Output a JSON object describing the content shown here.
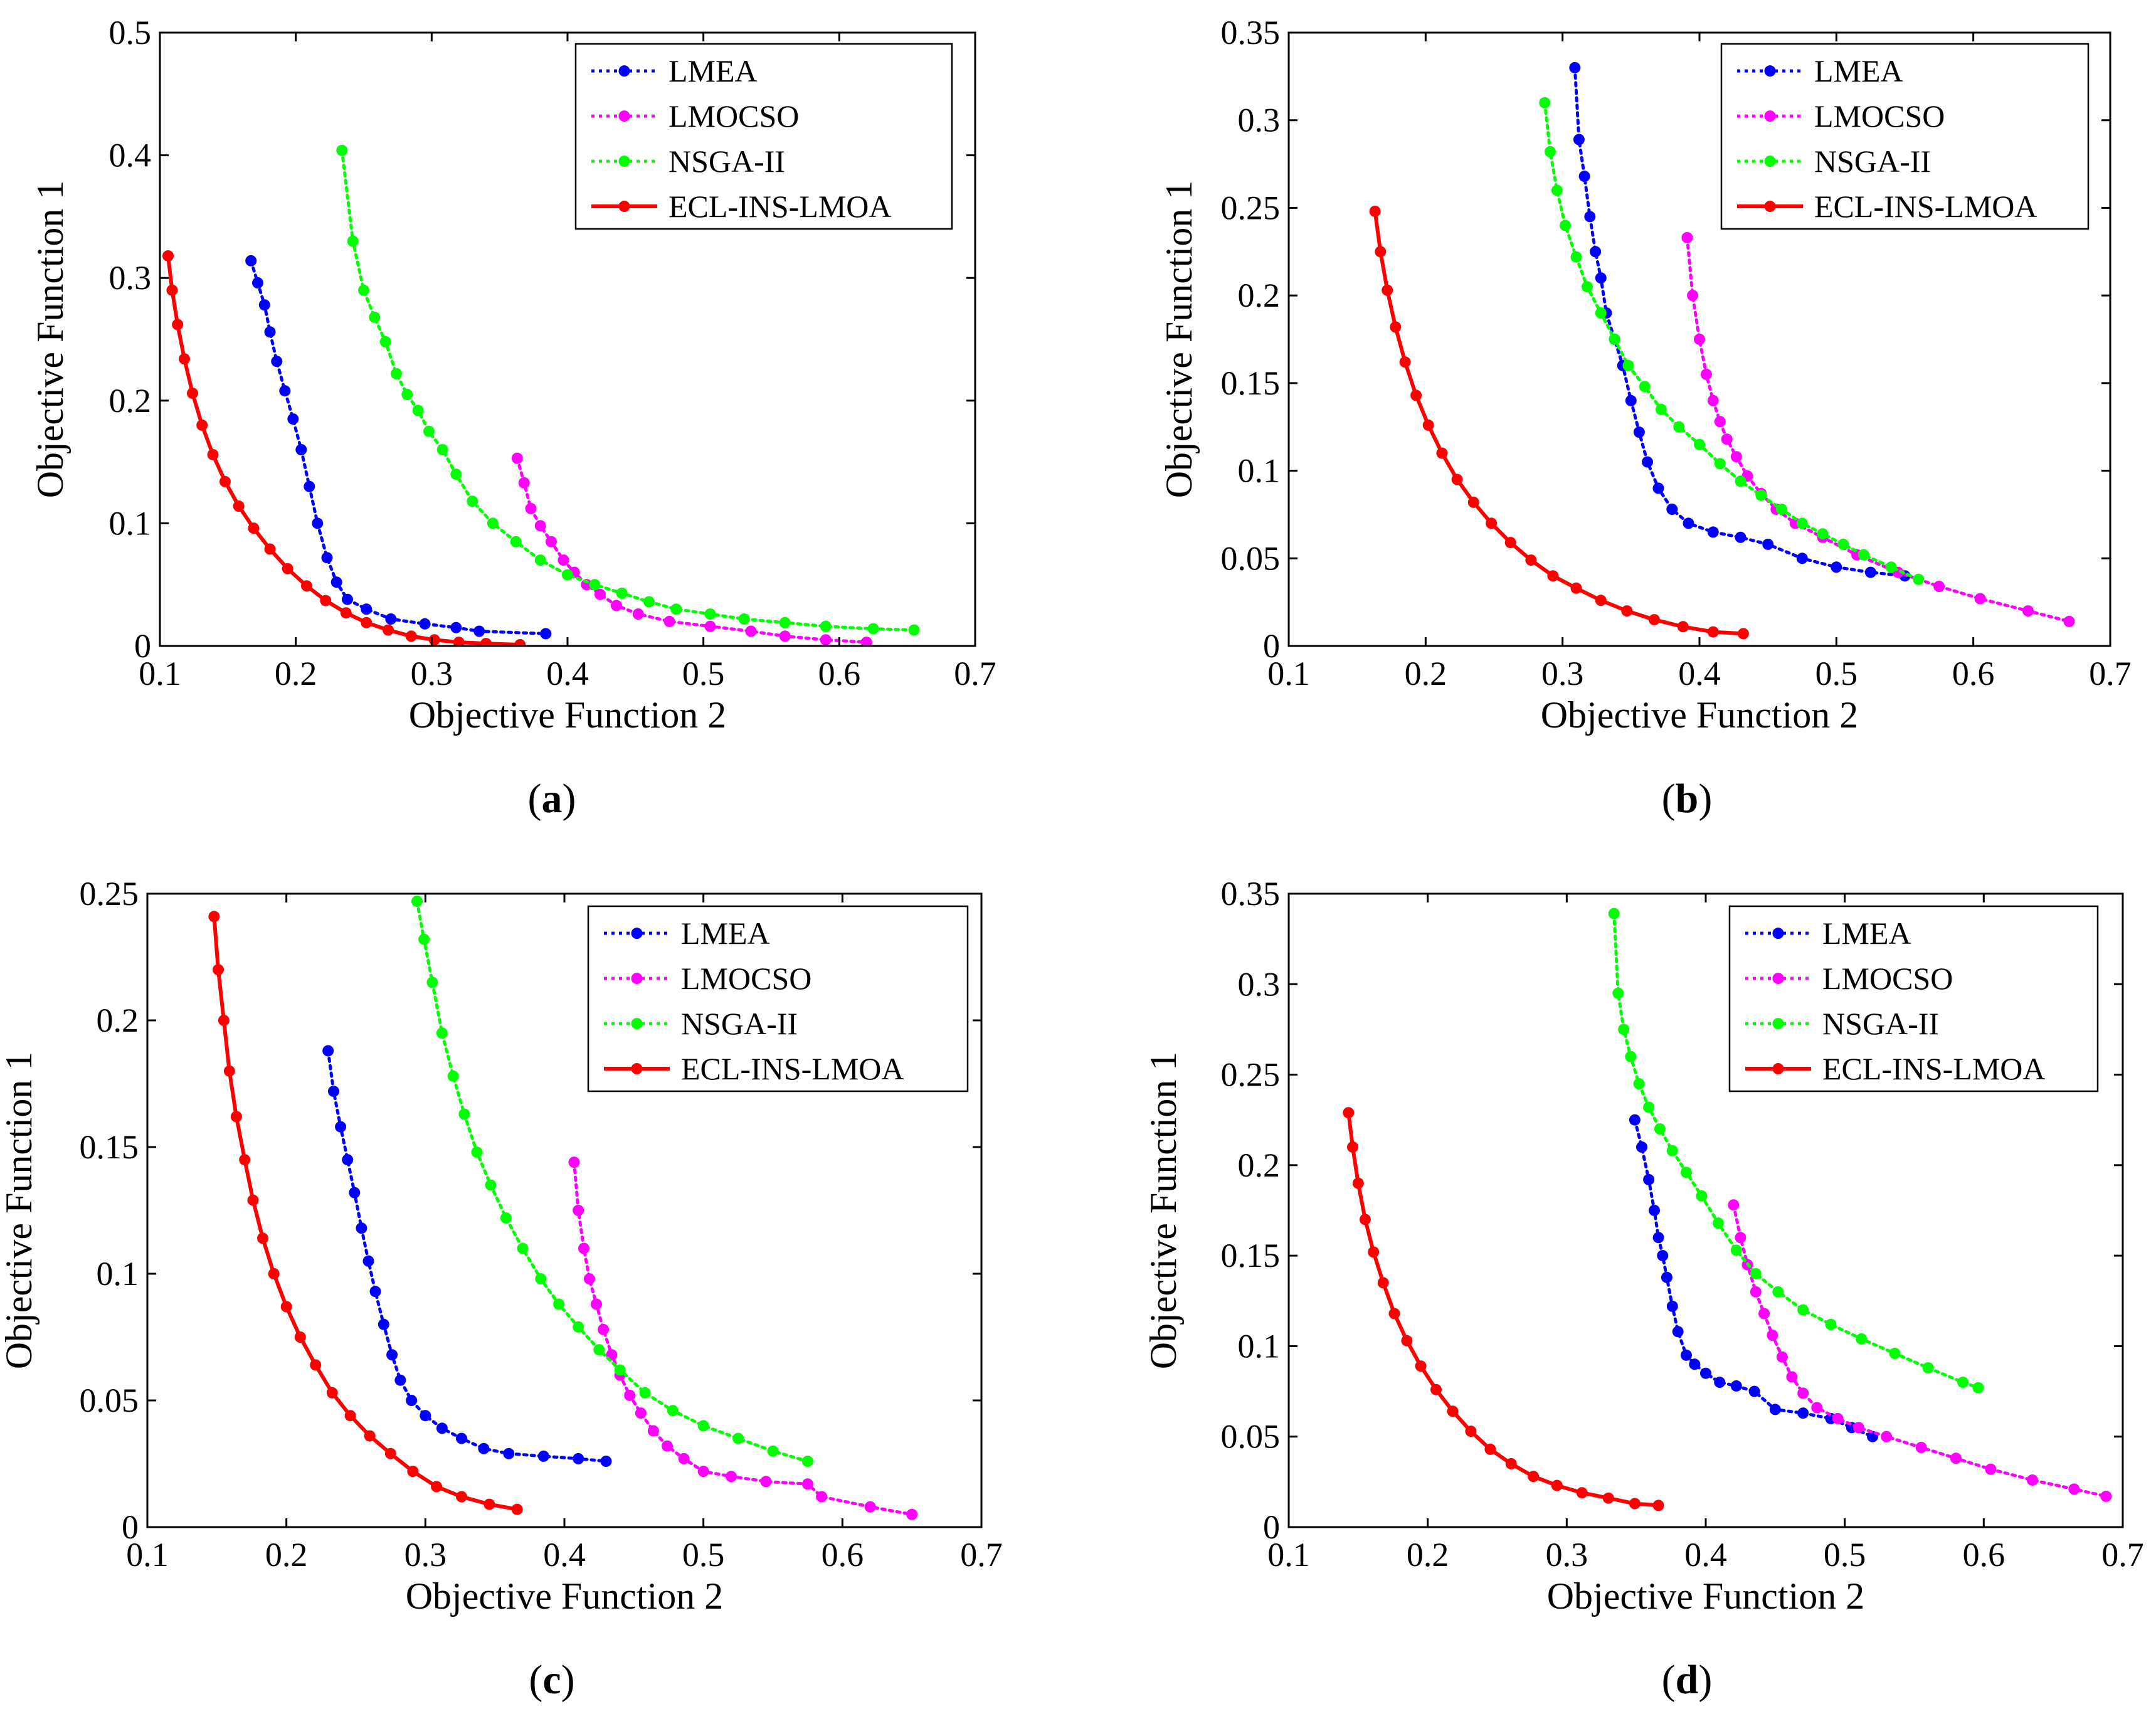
{
  "chart_data": [
    {
      "type": "line",
      "panel": "a",
      "caption": "(a)",
      "caption_parts": [
        "(",
        "a",
        ")"
      ],
      "xlabel": "Objective Function 2",
      "ylabel": "Objective Function 1",
      "xlim": [
        0.1,
        0.7
      ],
      "ylim": [
        0,
        0.5
      ],
      "xticks": [
        0.1,
        0.2,
        0.3,
        0.4,
        0.5,
        0.6,
        0.7
      ],
      "yticks": [
        0,
        0.1,
        0.2,
        0.3,
        0.4,
        0.5
      ],
      "xtick_labels": [
        "0.1",
        "0.2",
        "0.3",
        "0.4",
        "0.5",
        "0.6",
        "0.7"
      ],
      "ytick_labels": [
        "0",
        "0.1",
        "0.2",
        "0.3",
        "0.4",
        "0.5"
      ],
      "grid": false,
      "legend_position": "top-right",
      "series": [
        {
          "name": "LMEA",
          "color": "#0000ff",
          "line": "dotted",
          "x": [
            0.167,
            0.172,
            0.177,
            0.181,
            0.186,
            0.192,
            0.198,
            0.204,
            0.21,
            0.216,
            0.223,
            0.23,
            0.238,
            0.252,
            0.27,
            0.295,
            0.318,
            0.335,
            0.384
          ],
          "y": [
            0.314,
            0.296,
            0.278,
            0.256,
            0.232,
            0.208,
            0.185,
            0.16,
            0.13,
            0.1,
            0.072,
            0.052,
            0.038,
            0.03,
            0.022,
            0.018,
            0.015,
            0.012,
            0.01
          ]
        },
        {
          "name": "LMOCSO",
          "color": "#ff00ff",
          "line": "dotted",
          "x": [
            0.363,
            0.368,
            0.373,
            0.38,
            0.388,
            0.397,
            0.405,
            0.414,
            0.424,
            0.436,
            0.452,
            0.475,
            0.505,
            0.535,
            0.56,
            0.59,
            0.62
          ],
          "y": [
            0.153,
            0.133,
            0.112,
            0.098,
            0.085,
            0.07,
            0.06,
            0.05,
            0.042,
            0.033,
            0.026,
            0.02,
            0.016,
            0.012,
            0.008,
            0.005,
            0.003
          ]
        },
        {
          "name": "NSGA-II",
          "color": "#00ff00",
          "line": "dotted",
          "x": [
            0.234,
            0.242,
            0.25,
            0.258,
            0.266,
            0.274,
            0.282,
            0.29,
            0.298,
            0.308,
            0.318,
            0.33,
            0.345,
            0.362,
            0.38,
            0.4,
            0.42,
            0.44,
            0.46,
            0.48,
            0.505,
            0.53,
            0.56,
            0.59,
            0.625,
            0.655
          ],
          "y": [
            0.404,
            0.33,
            0.29,
            0.268,
            0.248,
            0.222,
            0.205,
            0.192,
            0.175,
            0.16,
            0.14,
            0.118,
            0.1,
            0.085,
            0.07,
            0.058,
            0.05,
            0.043,
            0.036,
            0.03,
            0.026,
            0.022,
            0.019,
            0.016,
            0.014,
            0.013
          ]
        },
        {
          "name": "ECL-INS-LMOA",
          "color": "#ff0000",
          "line": "solid",
          "x": [
            0.106,
            0.109,
            0.113,
            0.118,
            0.124,
            0.131,
            0.139,
            0.148,
            0.158,
            0.169,
            0.181,
            0.194,
            0.208,
            0.222,
            0.237,
            0.252,
            0.268,
            0.285,
            0.302,
            0.32,
            0.34,
            0.365
          ],
          "y": [
            0.318,
            0.29,
            0.262,
            0.234,
            0.206,
            0.18,
            0.156,
            0.134,
            0.114,
            0.096,
            0.079,
            0.063,
            0.049,
            0.037,
            0.027,
            0.019,
            0.013,
            0.008,
            0.005,
            0.003,
            0.002,
            0.001
          ]
        }
      ]
    },
    {
      "type": "line",
      "panel": "b",
      "caption": "(b)",
      "caption_parts": [
        "(",
        "b",
        ")"
      ],
      "xlabel": "Objective Function 2",
      "ylabel": "Objective Function 1",
      "xlim": [
        0.1,
        0.7
      ],
      "ylim": [
        0,
        0.35
      ],
      "xticks": [
        0.1,
        0.2,
        0.3,
        0.4,
        0.5,
        0.6,
        0.7
      ],
      "yticks": [
        0,
        0.05,
        0.1,
        0.15,
        0.2,
        0.25,
        0.3,
        0.35
      ],
      "xtick_labels": [
        "0.1",
        "0.2",
        "0.3",
        "0.4",
        "0.5",
        "0.6",
        "0.7"
      ],
      "ytick_labels": [
        "0",
        "0.05",
        "0.1",
        "0.15",
        "0.2",
        "0.25",
        "0.3",
        "0.35"
      ],
      "grid": false,
      "legend_position": "top-right",
      "series": [
        {
          "name": "LMEA",
          "color": "#0000ff",
          "line": "dotted",
          "x": [
            0.309,
            0.312,
            0.316,
            0.32,
            0.324,
            0.328,
            0.332,
            0.338,
            0.344,
            0.35,
            0.356,
            0.362,
            0.37,
            0.38,
            0.392,
            0.41,
            0.43,
            0.45,
            0.475,
            0.5,
            0.525,
            0.55
          ],
          "y": [
            0.33,
            0.289,
            0.268,
            0.245,
            0.225,
            0.21,
            0.19,
            0.175,
            0.16,
            0.14,
            0.122,
            0.105,
            0.09,
            0.078,
            0.07,
            0.065,
            0.062,
            0.058,
            0.05,
            0.045,
            0.042,
            0.04
          ]
        },
        {
          "name": "LMOCSO",
          "color": "#ff00ff",
          "line": "dotted",
          "x": [
            0.391,
            0.395,
            0.4,
            0.405,
            0.41,
            0.415,
            0.42,
            0.427,
            0.435,
            0.445,
            0.456,
            0.47,
            0.49,
            0.515,
            0.545,
            0.575,
            0.605,
            0.64,
            0.67
          ],
          "y": [
            0.233,
            0.2,
            0.175,
            0.155,
            0.14,
            0.128,
            0.118,
            0.108,
            0.097,
            0.087,
            0.078,
            0.07,
            0.062,
            0.052,
            0.042,
            0.034,
            0.027,
            0.02,
            0.014
          ]
        },
        {
          "name": "NSGA-II",
          "color": "#00ff00",
          "line": "dotted",
          "x": [
            0.287,
            0.291,
            0.296,
            0.302,
            0.31,
            0.318,
            0.328,
            0.338,
            0.348,
            0.36,
            0.372,
            0.385,
            0.4,
            0.415,
            0.43,
            0.445,
            0.46,
            0.475,
            0.49,
            0.505,
            0.52,
            0.54,
            0.56
          ],
          "y": [
            0.31,
            0.282,
            0.26,
            0.24,
            0.222,
            0.205,
            0.19,
            0.175,
            0.16,
            0.148,
            0.135,
            0.125,
            0.115,
            0.104,
            0.094,
            0.086,
            0.078,
            0.07,
            0.064,
            0.058,
            0.052,
            0.045,
            0.038
          ]
        },
        {
          "name": "ECL-INS-LMOA",
          "color": "#ff0000",
          "line": "solid",
          "x": [
            0.163,
            0.167,
            0.172,
            0.178,
            0.185,
            0.193,
            0.202,
            0.212,
            0.223,
            0.235,
            0.248,
            0.262,
            0.277,
            0.293,
            0.31,
            0.328,
            0.347,
            0.367,
            0.388,
            0.41,
            0.432
          ],
          "y": [
            0.248,
            0.225,
            0.203,
            0.182,
            0.162,
            0.143,
            0.126,
            0.11,
            0.095,
            0.082,
            0.07,
            0.059,
            0.049,
            0.04,
            0.033,
            0.026,
            0.02,
            0.015,
            0.011,
            0.008,
            0.007
          ]
        }
      ]
    },
    {
      "type": "line",
      "panel": "c",
      "caption": "(c)",
      "caption_parts": [
        "(",
        "c",
        ")"
      ],
      "xlabel": "Objective Function 2",
      "ylabel": "Objective Function 1",
      "xlim": [
        0.1,
        0.7
      ],
      "ylim": [
        0,
        0.25
      ],
      "xticks": [
        0.1,
        0.2,
        0.3,
        0.4,
        0.5,
        0.6,
        0.7
      ],
      "yticks": [
        0,
        0.05,
        0.1,
        0.15,
        0.2,
        0.25
      ],
      "xtick_labels": [
        "0.1",
        "0.2",
        "0.3",
        "0.4",
        "0.5",
        "0.6",
        "0.7"
      ],
      "ytick_labels": [
        "0",
        "0.05",
        "0.1",
        "0.15",
        "0.2",
        "0.25"
      ],
      "grid": false,
      "legend_position": "top-right",
      "series": [
        {
          "name": "LMEA",
          "color": "#0000ff",
          "line": "dotted",
          "x": [
            0.23,
            0.234,
            0.239,
            0.244,
            0.249,
            0.254,
            0.259,
            0.264,
            0.27,
            0.276,
            0.282,
            0.29,
            0.3,
            0.312,
            0.326,
            0.342,
            0.36,
            0.385,
            0.41,
            0.43
          ],
          "y": [
            0.188,
            0.172,
            0.158,
            0.145,
            0.132,
            0.118,
            0.105,
            0.093,
            0.08,
            0.068,
            0.058,
            0.05,
            0.044,
            0.039,
            0.035,
            0.031,
            0.029,
            0.028,
            0.027,
            0.026
          ]
        },
        {
          "name": "LMOCSO",
          "color": "#ff00ff",
          "line": "dotted",
          "x": [
            0.407,
            0.41,
            0.414,
            0.418,
            0.423,
            0.428,
            0.434,
            0.44,
            0.447,
            0.455,
            0.464,
            0.474,
            0.486,
            0.5,
            0.52,
            0.545,
            0.575,
            0.585,
            0.62,
            0.65
          ],
          "y": [
            0.144,
            0.125,
            0.11,
            0.098,
            0.088,
            0.078,
            0.068,
            0.06,
            0.052,
            0.045,
            0.038,
            0.032,
            0.027,
            0.022,
            0.02,
            0.018,
            0.017,
            0.012,
            0.008,
            0.005
          ]
        },
        {
          "name": "NSGA-II",
          "color": "#00ff00",
          "line": "dotted",
          "x": [
            0.294,
            0.299,
            0.305,
            0.312,
            0.32,
            0.328,
            0.337,
            0.347,
            0.358,
            0.37,
            0.383,
            0.396,
            0.41,
            0.425,
            0.44,
            0.458,
            0.478,
            0.5,
            0.525,
            0.55,
            0.575
          ],
          "y": [
            0.247,
            0.232,
            0.215,
            0.195,
            0.178,
            0.163,
            0.148,
            0.135,
            0.122,
            0.11,
            0.098,
            0.088,
            0.079,
            0.07,
            0.062,
            0.053,
            0.046,
            0.04,
            0.035,
            0.03,
            0.026
          ]
        },
        {
          "name": "ECL-INS-LMOA",
          "color": "#ff0000",
          "line": "solid",
          "x": [
            0.148,
            0.151,
            0.155,
            0.159,
            0.164,
            0.17,
            0.176,
            0.183,
            0.191,
            0.2,
            0.21,
            0.221,
            0.233,
            0.246,
            0.26,
            0.275,
            0.291,
            0.308,
            0.326,
            0.346,
            0.366
          ],
          "y": [
            0.241,
            0.22,
            0.2,
            0.18,
            0.162,
            0.145,
            0.129,
            0.114,
            0.1,
            0.087,
            0.075,
            0.064,
            0.053,
            0.044,
            0.036,
            0.029,
            0.022,
            0.016,
            0.012,
            0.009,
            0.007
          ]
        }
      ]
    },
    {
      "type": "line",
      "panel": "d",
      "caption": "(d)",
      "caption_parts": [
        "(",
        "d",
        ")"
      ],
      "xlabel": "Objective Function 2",
      "ylabel": "Objective Function 1",
      "xlim": [
        0.1,
        0.7
      ],
      "ylim": [
        0,
        0.35
      ],
      "xticks": [
        0.1,
        0.2,
        0.3,
        0.4,
        0.5,
        0.6,
        0.7
      ],
      "yticks": [
        0,
        0.05,
        0.1,
        0.15,
        0.2,
        0.25,
        0.3,
        0.35
      ],
      "xtick_labels": [
        "0.1",
        "0.2",
        "0.3",
        "0.4",
        "0.5",
        "0.6",
        "0.7"
      ],
      "ytick_labels": [
        "0",
        "0.05",
        "0.1",
        "0.15",
        "0.2",
        "0.25",
        "0.3",
        "0.35"
      ],
      "grid": false,
      "legend_position": "top-right",
      "series": [
        {
          "name": "LMEA",
          "color": "#0000ff",
          "line": "dotted",
          "x": [
            0.349,
            0.354,
            0.359,
            0.363,
            0.366,
            0.369,
            0.372,
            0.376,
            0.38,
            0.386,
            0.392,
            0.4,
            0.41,
            0.422,
            0.435,
            0.45,
            0.47,
            0.49,
            0.505,
            0.52
          ],
          "y": [
            0.225,
            0.21,
            0.192,
            0.175,
            0.16,
            0.15,
            0.138,
            0.122,
            0.108,
            0.095,
            0.09,
            0.085,
            0.08,
            0.078,
            0.075,
            0.065,
            0.063,
            0.06,
            0.055,
            0.05
          ]
        },
        {
          "name": "LMOCSO",
          "color": "#ff00ff",
          "line": "dotted",
          "x": [
            0.42,
            0.425,
            0.43,
            0.436,
            0.442,
            0.448,
            0.455,
            0.462,
            0.47,
            0.48,
            0.495,
            0.51,
            0.53,
            0.555,
            0.58,
            0.605,
            0.635,
            0.665,
            0.688
          ],
          "y": [
            0.178,
            0.16,
            0.145,
            0.13,
            0.118,
            0.106,
            0.094,
            0.083,
            0.074,
            0.066,
            0.06,
            0.055,
            0.05,
            0.044,
            0.038,
            0.032,
            0.026,
            0.021,
            0.017
          ]
        },
        {
          "name": "NSGA-II",
          "color": "#00ff00",
          "line": "dotted",
          "x": [
            0.334,
            0.337,
            0.341,
            0.346,
            0.352,
            0.359,
            0.367,
            0.376,
            0.386,
            0.397,
            0.409,
            0.422,
            0.436,
            0.452,
            0.47,
            0.49,
            0.512,
            0.536,
            0.56,
            0.585,
            0.596
          ],
          "y": [
            0.339,
            0.295,
            0.275,
            0.26,
            0.245,
            0.232,
            0.22,
            0.208,
            0.196,
            0.183,
            0.168,
            0.153,
            0.14,
            0.13,
            0.12,
            0.112,
            0.104,
            0.096,
            0.088,
            0.08,
            0.077
          ]
        },
        {
          "name": "ECL-INS-LMOA",
          "color": "#ff0000",
          "line": "solid",
          "x": [
            0.143,
            0.146,
            0.15,
            0.155,
            0.161,
            0.168,
            0.176,
            0.185,
            0.195,
            0.206,
            0.218,
            0.231,
            0.245,
            0.26,
            0.276,
            0.293,
            0.311,
            0.33,
            0.349,
            0.366
          ],
          "y": [
            0.229,
            0.21,
            0.19,
            0.17,
            0.152,
            0.135,
            0.118,
            0.103,
            0.089,
            0.076,
            0.064,
            0.053,
            0.043,
            0.035,
            0.028,
            0.023,
            0.019,
            0.016,
            0.013,
            0.012
          ]
        }
      ]
    }
  ]
}
